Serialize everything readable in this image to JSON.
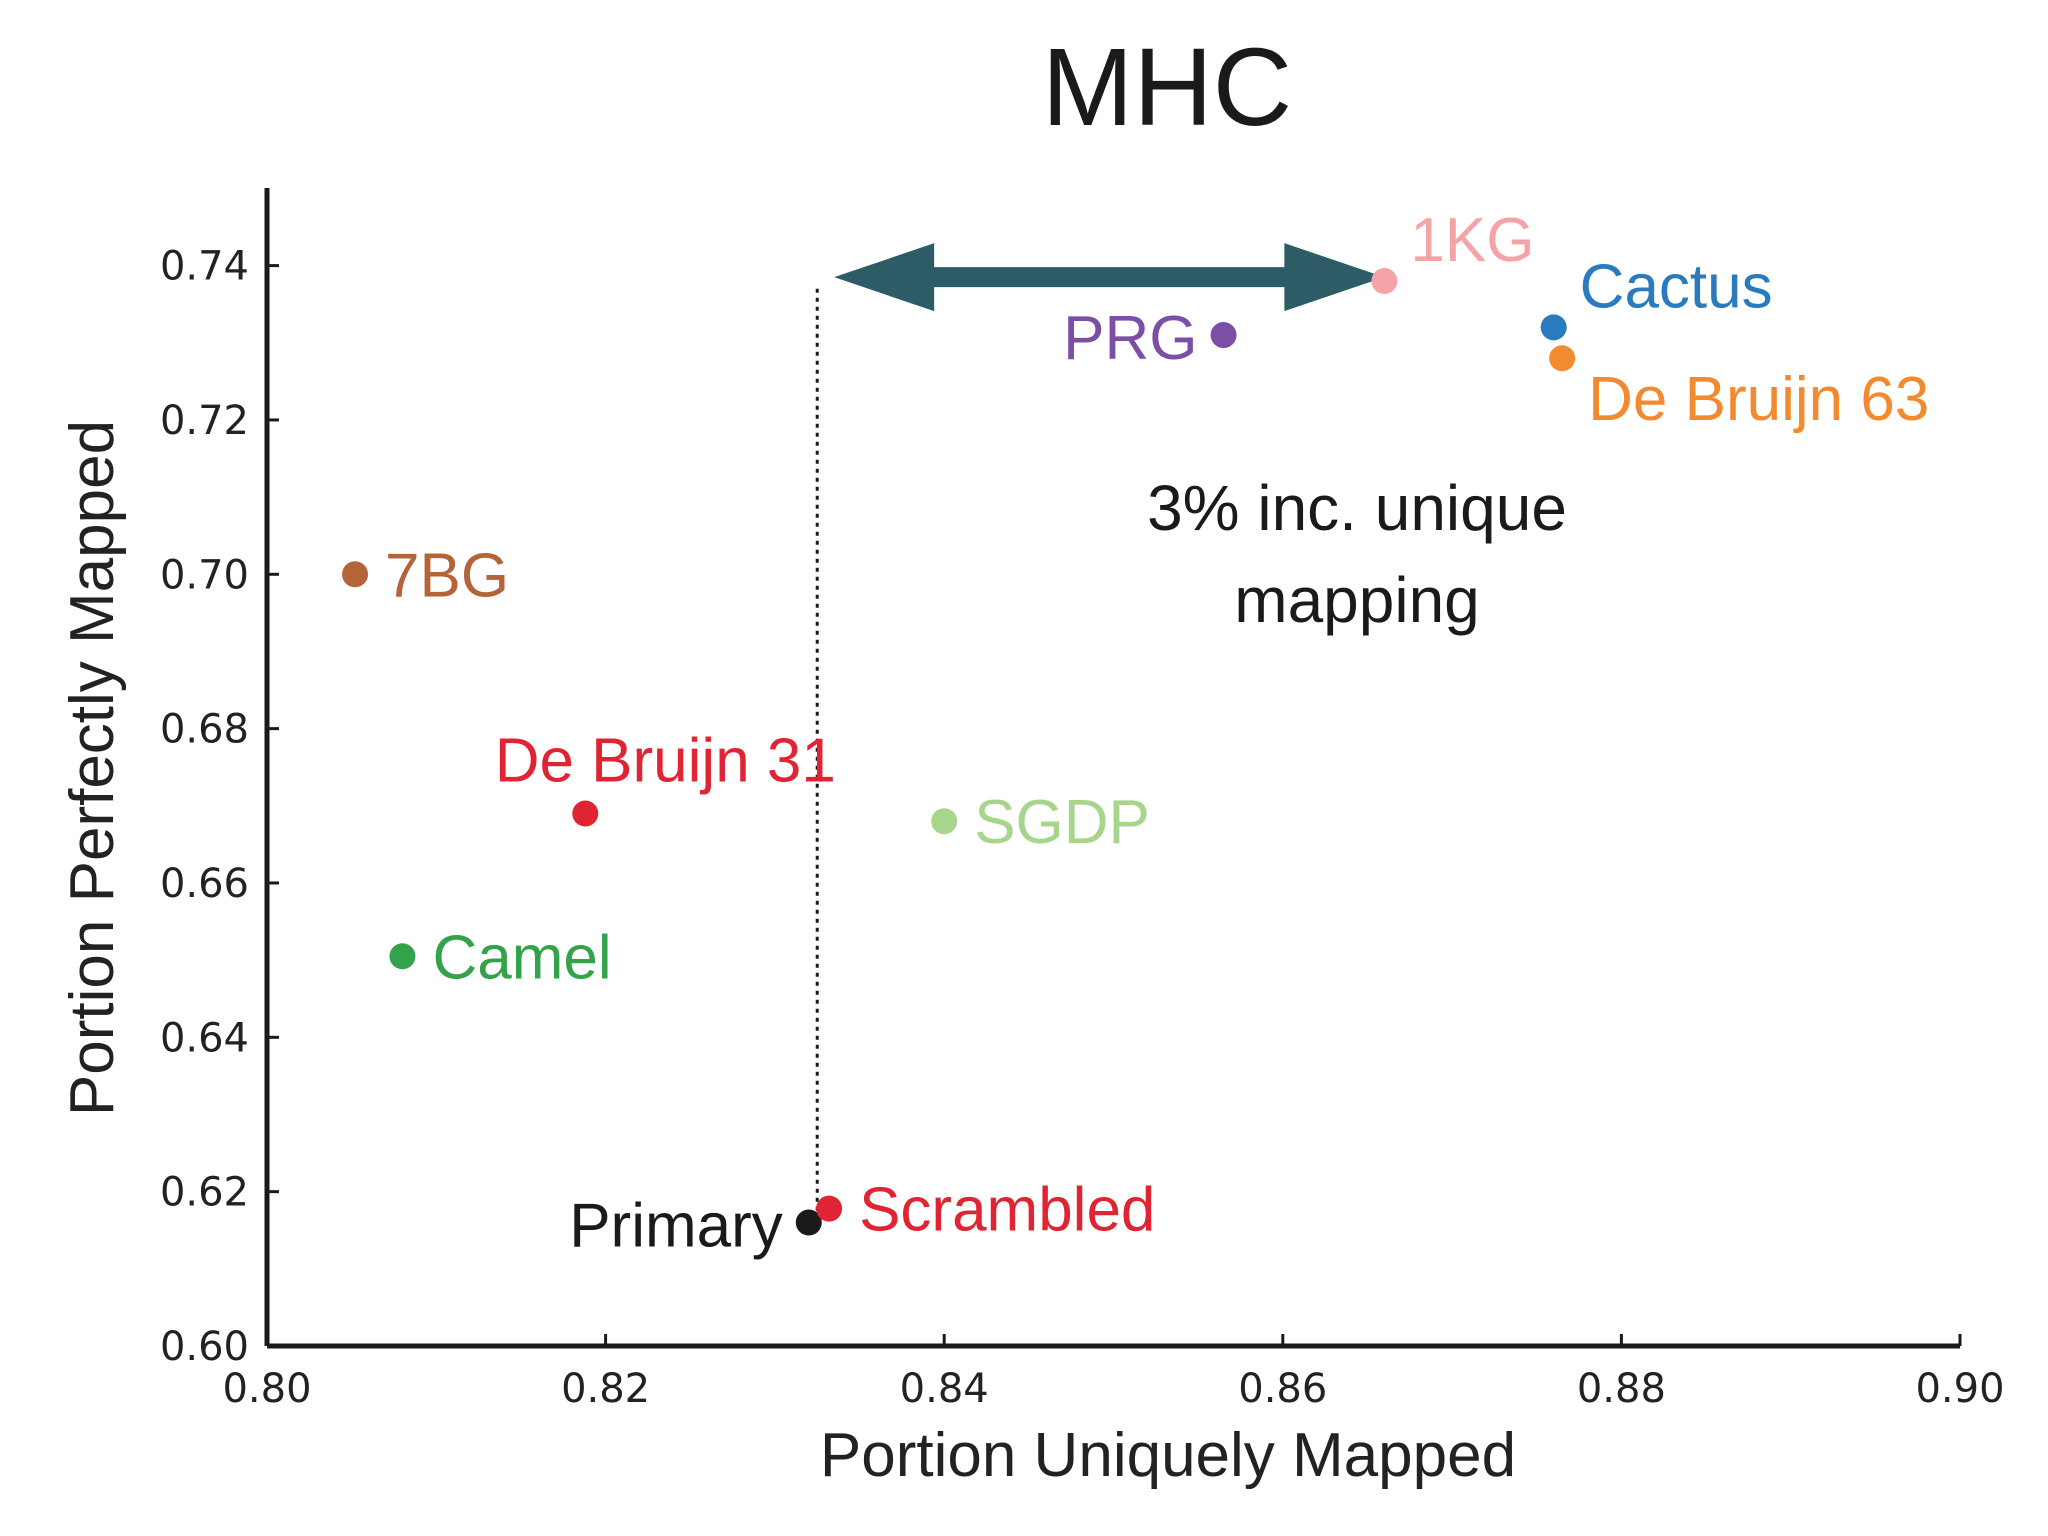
{
  "chart_data": {
    "type": "scatter",
    "title": "MHC",
    "xlabel": "Portion Uniquely Mapped",
    "ylabel": "Portion Perfectly Mapped",
    "xlim": [
      0.8,
      0.9
    ],
    "ylim": [
      0.6,
      0.75
    ],
    "xticks": [
      "0.80",
      "0.82",
      "0.84",
      "0.86",
      "0.88",
      "0.90"
    ],
    "yticks": [
      "0.60",
      "0.62",
      "0.64",
      "0.66",
      "0.68",
      "0.70",
      "0.72",
      "0.74"
    ],
    "grid": false,
    "points": [
      {
        "name": "1KG",
        "x": 0.866,
        "y": 0.738,
        "color": "#f4a3a8",
        "label_pos": "upper-right"
      },
      {
        "name": "Cactus",
        "x": 0.876,
        "y": 0.732,
        "color": "#2a7bbd",
        "label_pos": "upper-right"
      },
      {
        "name": "De Bruijn 63",
        "x": 0.8765,
        "y": 0.728,
        "color": "#f28a30",
        "label_pos": "lower-right"
      },
      {
        "name": "PRG",
        "x": 0.8565,
        "y": 0.731,
        "color": "#7b4fa6",
        "label_pos": "left"
      },
      {
        "name": "7BG",
        "x": 0.8052,
        "y": 0.7,
        "color": "#b5643a",
        "label_pos": "right"
      },
      {
        "name": "De Bruijn 31",
        "x": 0.8188,
        "y": 0.669,
        "color": "#e02433",
        "label_pos": "above"
      },
      {
        "name": "SGDP",
        "x": 0.84,
        "y": 0.668,
        "color": "#a8d58c",
        "label_pos": "right"
      },
      {
        "name": "Camel",
        "x": 0.808,
        "y": 0.6505,
        "color": "#33a34a",
        "label_pos": "right"
      },
      {
        "name": "Primary",
        "x": 0.832,
        "y": 0.616,
        "color": "#1a1a1a",
        "label_pos": "left"
      },
      {
        "name": "Scrambled",
        "x": 0.8332,
        "y": 0.6178,
        "color": "#e02433",
        "label_pos": "right"
      }
    ],
    "annotations": {
      "arrow": {
        "x_from": 0.8335,
        "x_to": 0.866,
        "y": 0.7385,
        "color": "#2e5c66"
      },
      "dotted_line": {
        "x": 0.8325,
        "y_from": 0.6175,
        "y_to": 0.737
      },
      "text_lines": [
        "3% inc. unique",
        "mapping"
      ]
    }
  }
}
